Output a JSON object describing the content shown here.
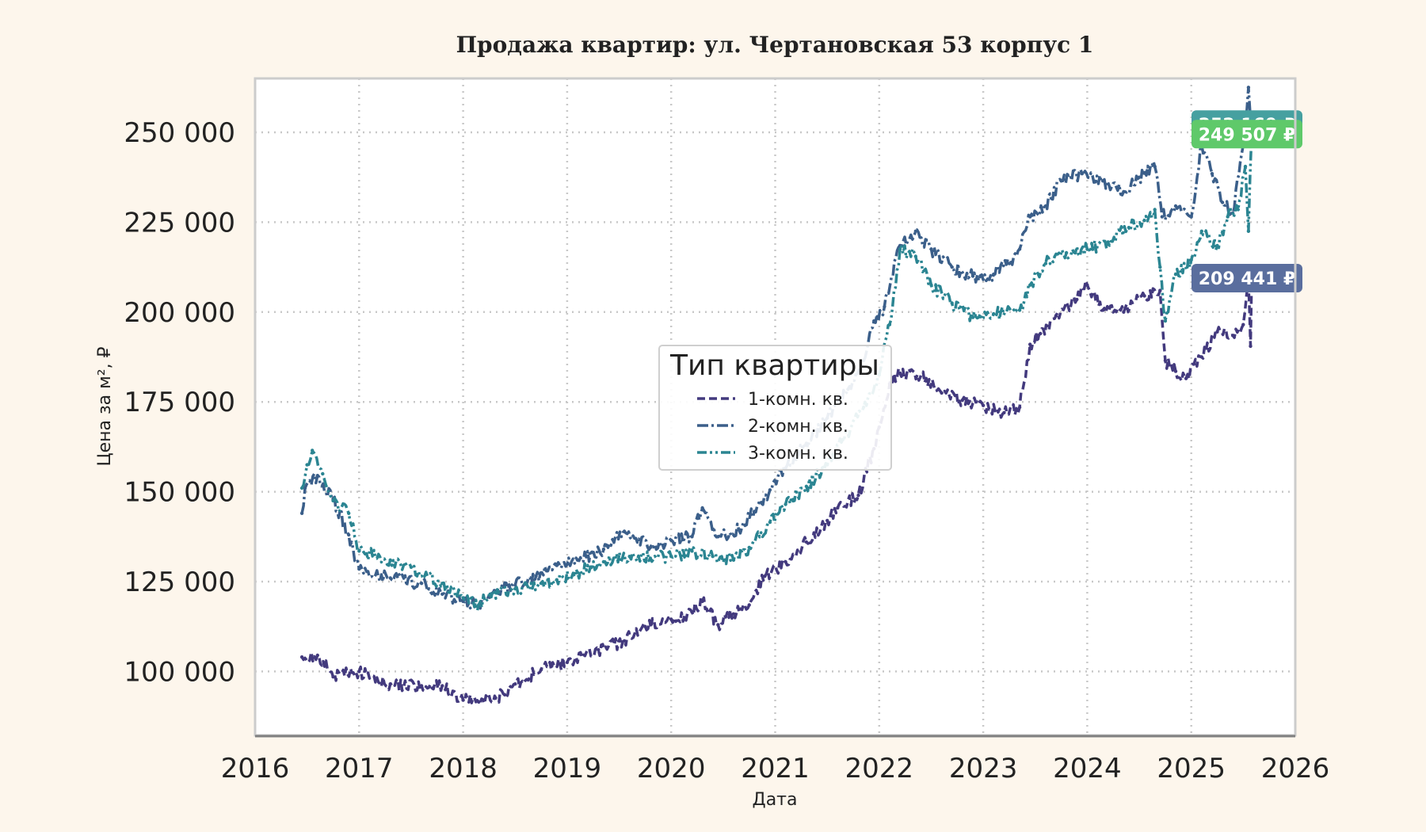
{
  "chart_data": {
    "type": "line",
    "title": "Продажа квартир: ул. Чертановская 53 корпус 1",
    "xlabel": "Дата",
    "ylabel": "Цена за м², ₽",
    "xlim": [
      2016,
      2026
    ],
    "ylim": [
      82000,
      265000
    ],
    "x_ticks": [
      "2016",
      "2017",
      "2018",
      "2019",
      "2020",
      "2021",
      "2022",
      "2023",
      "2024",
      "2025",
      "2026"
    ],
    "y_ticks": [
      {
        "value": 100000,
        "label": "100 000"
      },
      {
        "value": 125000,
        "label": "125 000"
      },
      {
        "value": 150000,
        "label": "150 000"
      },
      {
        "value": 175000,
        "label": "175 000"
      },
      {
        "value": 200000,
        "label": "200 000"
      },
      {
        "value": 225000,
        "label": "225 000"
      },
      {
        "value": 250000,
        "label": "250 000"
      }
    ],
    "grid": true,
    "legend": {
      "title": "Тип квартиры",
      "placement": "center"
    },
    "series": [
      {
        "name": "1-комн. кв.",
        "color": "#433a7e",
        "dash": "10,5",
        "points": [
          [
            2016.45,
            104000
          ],
          [
            2016.6,
            104500
          ],
          [
            2016.75,
            98500
          ],
          [
            2017.0,
            100000
          ],
          [
            2017.3,
            96500
          ],
          [
            2017.6,
            96000
          ],
          [
            2017.8,
            96000
          ],
          [
            2018.0,
            92000
          ],
          [
            2018.15,
            91500
          ],
          [
            2018.4,
            93500
          ],
          [
            2018.5,
            96500
          ],
          [
            2018.75,
            100500
          ],
          [
            2019.0,
            102500
          ],
          [
            2019.3,
            106000
          ],
          [
            2019.55,
            108500
          ],
          [
            2019.75,
            112500
          ],
          [
            2020.0,
            114500
          ],
          [
            2020.2,
            116500
          ],
          [
            2020.3,
            119500
          ],
          [
            2020.45,
            113000
          ],
          [
            2020.6,
            116000
          ],
          [
            2020.75,
            118500
          ],
          [
            2020.9,
            126500
          ],
          [
            2021.1,
            130500
          ],
          [
            2021.3,
            136000
          ],
          [
            2021.5,
            142000
          ],
          [
            2021.6,
            145500
          ],
          [
            2021.8,
            149000
          ],
          [
            2021.95,
            162000
          ],
          [
            2022.0,
            168000
          ],
          [
            2022.1,
            180000
          ],
          [
            2022.2,
            183000
          ],
          [
            2022.45,
            181500
          ],
          [
            2022.6,
            177500
          ],
          [
            2022.8,
            175500
          ],
          [
            2023.0,
            174000
          ],
          [
            2023.2,
            172000
          ],
          [
            2023.35,
            173500
          ],
          [
            2023.45,
            191000
          ],
          [
            2023.55,
            194000
          ],
          [
            2023.7,
            199000
          ],
          [
            2023.9,
            203500
          ],
          [
            2024.0,
            207500
          ],
          [
            2024.15,
            200500
          ],
          [
            2024.35,
            200000
          ],
          [
            2024.55,
            204500
          ],
          [
            2024.7,
            206000
          ],
          [
            2024.75,
            186500
          ],
          [
            2024.85,
            183500
          ],
          [
            2024.95,
            181500
          ],
          [
            2025.1,
            187500
          ],
          [
            2025.25,
            194500
          ],
          [
            2025.4,
            193500
          ],
          [
            2025.5,
            196500
          ],
          [
            2025.55,
            208000
          ],
          [
            2025.57,
            190500
          ],
          [
            2025.58,
            209441
          ]
        ]
      },
      {
        "name": "2-комн. кв.",
        "color": "#3b5f8a",
        "dash": "14,4,3,4",
        "points": [
          [
            2016.45,
            144000
          ],
          [
            2016.48,
            151000
          ],
          [
            2016.6,
            154500
          ],
          [
            2016.75,
            148000
          ],
          [
            2016.9,
            138000
          ],
          [
            2017.0,
            128500
          ],
          [
            2017.3,
            126000
          ],
          [
            2017.6,
            124500
          ],
          [
            2017.8,
            121500
          ],
          [
            2018.0,
            119500
          ],
          [
            2018.15,
            118500
          ],
          [
            2018.3,
            122500
          ],
          [
            2018.5,
            124000
          ],
          [
            2018.7,
            126500
          ],
          [
            2018.9,
            129500
          ],
          [
            2019.1,
            131000
          ],
          [
            2019.35,
            134000
          ],
          [
            2019.55,
            139000
          ],
          [
            2019.8,
            134500
          ],
          [
            2020.0,
            136500
          ],
          [
            2020.2,
            137500
          ],
          [
            2020.3,
            145500
          ],
          [
            2020.45,
            137500
          ],
          [
            2020.65,
            139500
          ],
          [
            2020.8,
            144500
          ],
          [
            2020.95,
            150500
          ],
          [
            2021.1,
            156500
          ],
          [
            2021.3,
            163500
          ],
          [
            2021.5,
            170500
          ],
          [
            2021.7,
            178500
          ],
          [
            2021.85,
            186500
          ],
          [
            2021.95,
            197500
          ],
          [
            2022.05,
            201500
          ],
          [
            2022.2,
            218500
          ],
          [
            2022.35,
            222500
          ],
          [
            2022.5,
            217500
          ],
          [
            2022.7,
            212500
          ],
          [
            2022.9,
            210000
          ],
          [
            2023.1,
            210500
          ],
          [
            2023.25,
            213500
          ],
          [
            2023.35,
            217500
          ],
          [
            2023.45,
            226500
          ],
          [
            2023.6,
            229500
          ],
          [
            2023.75,
            236500
          ],
          [
            2023.95,
            238500
          ],
          [
            2024.15,
            236500
          ],
          [
            2024.35,
            233500
          ],
          [
            2024.5,
            237500
          ],
          [
            2024.65,
            240500
          ],
          [
            2024.72,
            226500
          ],
          [
            2024.85,
            229500
          ],
          [
            2025.0,
            226500
          ],
          [
            2025.1,
            246500
          ],
          [
            2025.2,
            238500
          ],
          [
            2025.3,
            230500
          ],
          [
            2025.4,
            227500
          ],
          [
            2025.5,
            246500
          ],
          [
            2025.55,
            262500
          ],
          [
            2025.58,
            252169
          ]
        ]
      },
      {
        "name": "3-комн. кв.",
        "color": "#2b8592",
        "dash": "12,4,3,4,3,4",
        "points": [
          [
            2016.45,
            151000
          ],
          [
            2016.5,
            157500
          ],
          [
            2016.55,
            161500
          ],
          [
            2016.65,
            155000
          ],
          [
            2016.75,
            147500
          ],
          [
            2016.9,
            144000
          ],
          [
            2017.0,
            133500
          ],
          [
            2017.3,
            131000
          ],
          [
            2017.5,
            129000
          ],
          [
            2017.8,
            124500
          ],
          [
            2018.0,
            120500
          ],
          [
            2018.15,
            118500
          ],
          [
            2018.3,
            122000
          ],
          [
            2018.5,
            123000
          ],
          [
            2018.75,
            124500
          ],
          [
            2018.9,
            125500
          ],
          [
            2019.1,
            127500
          ],
          [
            2019.35,
            130500
          ],
          [
            2019.6,
            132000
          ],
          [
            2019.8,
            131500
          ],
          [
            2020.0,
            132000
          ],
          [
            2020.2,
            133500
          ],
          [
            2020.4,
            132000
          ],
          [
            2020.6,
            131000
          ],
          [
            2020.75,
            134500
          ],
          [
            2020.95,
            141500
          ],
          [
            2021.1,
            146500
          ],
          [
            2021.3,
            151500
          ],
          [
            2021.5,
            157500
          ],
          [
            2021.65,
            164500
          ],
          [
            2021.85,
            173500
          ],
          [
            2022.0,
            182500
          ],
          [
            2022.1,
            196500
          ],
          [
            2022.2,
            217500
          ],
          [
            2022.35,
            215500
          ],
          [
            2022.5,
            207500
          ],
          [
            2022.7,
            202500
          ],
          [
            2022.9,
            198500
          ],
          [
            2023.1,
            199500
          ],
          [
            2023.35,
            200500
          ],
          [
            2023.45,
            207500
          ],
          [
            2023.6,
            213500
          ],
          [
            2023.8,
            216500
          ],
          [
            2024.0,
            217500
          ],
          [
            2024.2,
            219500
          ],
          [
            2024.4,
            223500
          ],
          [
            2024.55,
            225500
          ],
          [
            2024.65,
            228500
          ],
          [
            2024.7,
            212500
          ],
          [
            2024.75,
            197500
          ],
          [
            2024.85,
            210500
          ],
          [
            2025.0,
            214500
          ],
          [
            2025.1,
            222500
          ],
          [
            2025.25,
            218500
          ],
          [
            2025.35,
            226500
          ],
          [
            2025.45,
            228500
          ],
          [
            2025.52,
            240500
          ],
          [
            2025.55,
            222500
          ],
          [
            2025.58,
            249507
          ]
        ]
      }
    ],
    "end_labels": [
      {
        "series": "2-комн. кв.",
        "text": "252 169 ₽",
        "value": 252169,
        "color": "#46a0a0"
      },
      {
        "series": "3-комн. кв.",
        "text": "249 507 ₽",
        "value": 249507,
        "color": "#5fc96a"
      },
      {
        "series": "1-комн. кв.",
        "text": "209 441 ₽",
        "value": 209441,
        "color": "#5a6e9e"
      }
    ]
  }
}
